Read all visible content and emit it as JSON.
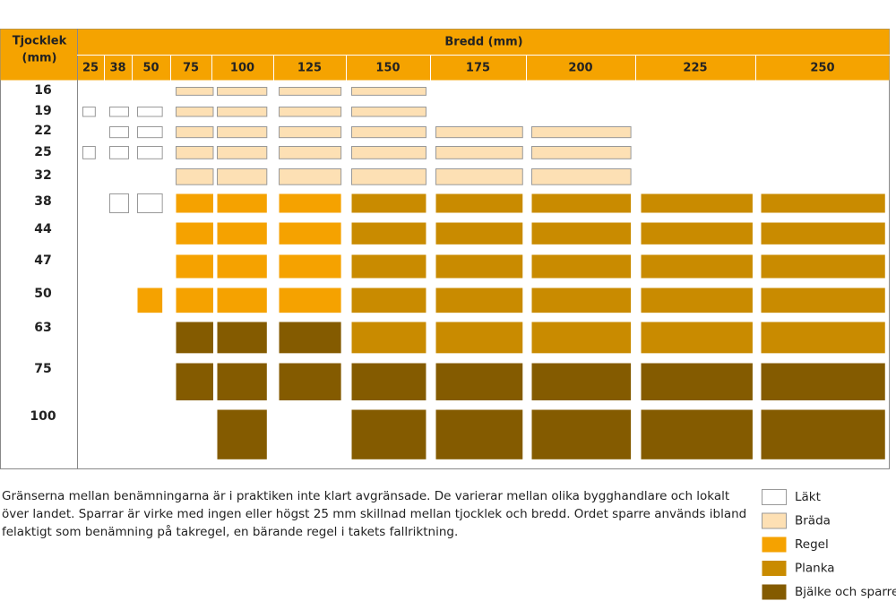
{
  "header": {
    "thickness_label": [
      "Tjocklek",
      "(mm)"
    ],
    "width_label": "Bredd (mm)"
  },
  "widths": [
    "25",
    "38",
    "50",
    "75",
    "100",
    "125",
    "150",
    "175",
    "200",
    "225",
    "250"
  ],
  "thicknesses": [
    "16",
    "19",
    "22",
    "25",
    "32",
    "38",
    "44",
    "47",
    "50",
    "63",
    "75",
    "100"
  ],
  "grid": [
    [
      null,
      null,
      null,
      1,
      1,
      1,
      1,
      null,
      null,
      null,
      null
    ],
    [
      0,
      0,
      0,
      1,
      1,
      1,
      1,
      null,
      null,
      null,
      null
    ],
    [
      null,
      0,
      0,
      1,
      1,
      1,
      1,
      1,
      1,
      null,
      null
    ],
    [
      0,
      0,
      0,
      1,
      1,
      1,
      1,
      1,
      1,
      null,
      null
    ],
    [
      null,
      null,
      null,
      1,
      1,
      1,
      1,
      1,
      1,
      null,
      null
    ],
    [
      null,
      0,
      0,
      2,
      2,
      2,
      3,
      3,
      3,
      3,
      3
    ],
    [
      null,
      null,
      null,
      2,
      2,
      2,
      3,
      3,
      3,
      3,
      3
    ],
    [
      null,
      null,
      null,
      2,
      2,
      2,
      3,
      3,
      3,
      3,
      3
    ],
    [
      null,
      null,
      2,
      2,
      2,
      2,
      3,
      3,
      3,
      3,
      3
    ],
    [
      null,
      null,
      null,
      4,
      4,
      4,
      3,
      3,
      3,
      3,
      3
    ],
    [
      null,
      null,
      null,
      4,
      4,
      4,
      4,
      4,
      4,
      4,
      4
    ],
    [
      null,
      null,
      null,
      null,
      4,
      null,
      4,
      4,
      4,
      4,
      4
    ]
  ],
  "legend": [
    {
      "label": "Läkt",
      "color": "#ffffff"
    },
    {
      "label": "Bräda",
      "color": "#fde0b4"
    },
    {
      "label": "Regel",
      "color": "#f5a200"
    },
    {
      "label": "Planka",
      "color": "#c98b00"
    },
    {
      "label": "Bjälke och sparre",
      "color": "#845b00"
    }
  ],
  "note": [
    "Gränserna mellan benämningarna är i praktiken inte klart avgränsade. De varierar mellan olika bygghandlare och lokalt",
    "över landet. Sparrar är virke med ingen eller högst 25 mm skillnad mellan tjocklek och bredd. Ordet sparre används ibland",
    "felaktigt som benämning på takregel, en bärande regel i takets fallriktning."
  ]
}
